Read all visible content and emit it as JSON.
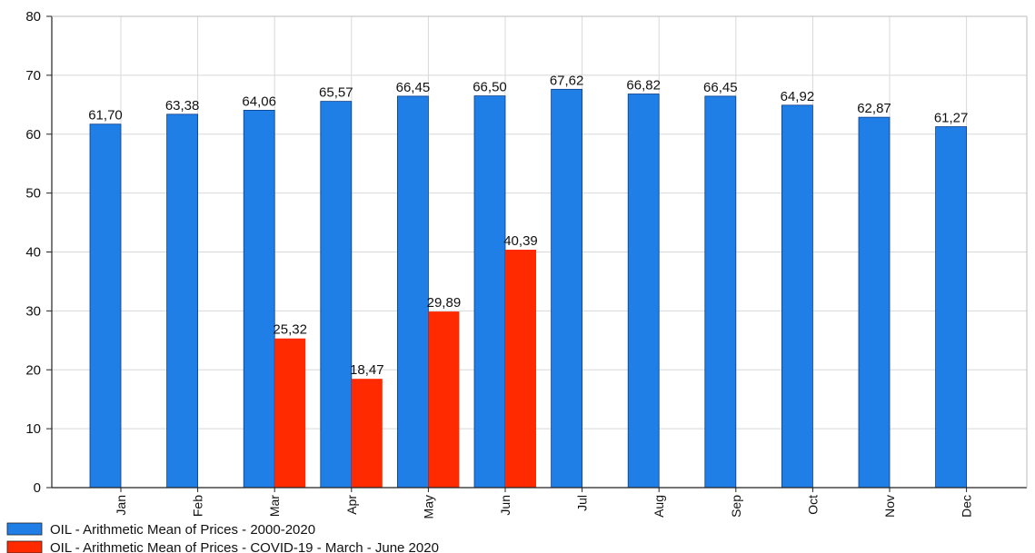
{
  "chart_data": {
    "type": "bar",
    "categories": [
      "Jan",
      "Feb",
      "Mar",
      "Apr",
      "May",
      "Jun",
      "Jul",
      "Aug",
      "Sep",
      "Oct",
      "Nov",
      "Dec"
    ],
    "series": [
      {
        "name": "OIL - Arithmetic Mean of Prices - 2000-2020",
        "color": "#1f7fe6",
        "values": [
          61.7,
          63.38,
          64.06,
          65.57,
          66.45,
          66.5,
          67.62,
          66.82,
          66.45,
          64.92,
          62.87,
          61.27
        ],
        "labels": [
          "61,70",
          "63,38",
          "64,06",
          "65,57",
          "66,45",
          "66,50",
          "67,62",
          "66,82",
          "66,45",
          "64,92",
          "62,87",
          "61,27"
        ]
      },
      {
        "name": "OIL - Arithmetic Mean of Prices - COVID-19 - March - June 2020",
        "color": "#ff2a00",
        "values": [
          null,
          null,
          25.32,
          18.47,
          29.89,
          40.39,
          null,
          null,
          null,
          null,
          null,
          null
        ],
        "labels": [
          null,
          null,
          "25,32",
          "18,47",
          "29,89",
          "40,39",
          null,
          null,
          null,
          null,
          null,
          null
        ]
      }
    ],
    "ylim": [
      0,
      80
    ],
    "yticks": [
      "0",
      "10",
      "20",
      "30",
      "40",
      "50",
      "60",
      "70",
      "80"
    ],
    "grid": true,
    "legend_position": "bottom-left"
  }
}
